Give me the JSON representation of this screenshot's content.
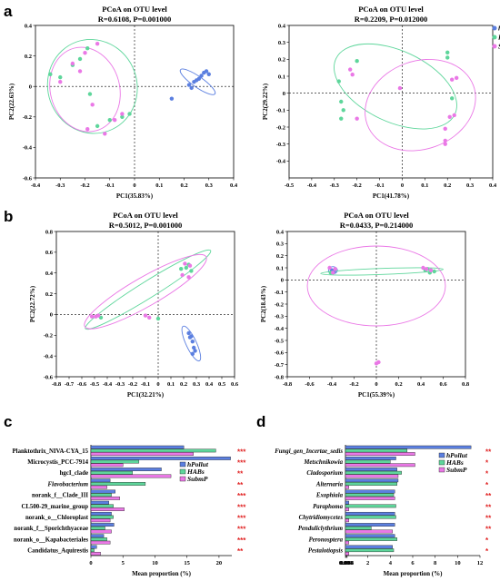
{
  "panel_labels": [
    "a",
    "b",
    "c",
    "d"
  ],
  "colors": {
    "hPollut": "#5b7fe0",
    "HABs": "#5ed69b",
    "SubmP": "#ea78e6"
  },
  "chart_data": [
    {
      "type": "scatter",
      "title": "PCoA on OTU level",
      "subtitle": "R=0.6108, P=0.001000",
      "xlabel": "PC1(35.83%)",
      "ylabel": "PC2(22.63%)",
      "xlim": [
        -0.4,
        0.4
      ],
      "ylim": [
        -0.6,
        0.4
      ],
      "xticks": [
        "-0.4",
        "-0.3",
        "-0.2",
        "-0.1",
        "0",
        "0.1",
        "0.2",
        "0.3",
        "0.4"
      ],
      "yticks": [
        "-0.6",
        "-0.4",
        "-0.2",
        "0",
        "0.2",
        "0.4"
      ],
      "legend": [
        "hPollut",
        "HABs",
        "SubmP"
      ],
      "series": [
        {
          "name": "hPollut",
          "points": [
            [
              0.22,
              0.01
            ],
            [
              0.24,
              0.03
            ],
            [
              0.26,
              0.05
            ],
            [
              0.27,
              0.07
            ],
            [
              0.28,
              0.09
            ],
            [
              0.29,
              0.1
            ],
            [
              0.3,
              0.08
            ],
            [
              0.25,
              0.04
            ],
            [
              0.23,
              -0.01
            ],
            [
              0.15,
              -0.08
            ]
          ]
        },
        {
          "name": "HABs",
          "points": [
            [
              -0.34,
              0.08
            ],
            [
              -0.3,
              0.06
            ],
            [
              -0.25,
              0.14
            ],
            [
              -0.22,
              0.18
            ],
            [
              -0.19,
              0.25
            ],
            [
              -0.18,
              -0.05
            ],
            [
              -0.1,
              -0.22
            ],
            [
              -0.05,
              -0.2
            ],
            [
              -0.15,
              -0.26
            ],
            [
              -0.02,
              -0.18
            ]
          ]
        },
        {
          "name": "SubmP",
          "points": [
            [
              -0.3,
              0.03
            ],
            [
              -0.25,
              0.15
            ],
            [
              -0.2,
              0.22
            ],
            [
              -0.15,
              0.28
            ],
            [
              -0.17,
              -0.12
            ],
            [
              -0.19,
              -0.28
            ],
            [
              -0.12,
              -0.31
            ],
            [
              -0.08,
              -0.22
            ],
            [
              -0.05,
              -0.18
            ],
            [
              -0.22,
              0.1
            ]
          ]
        }
      ],
      "ellipses": [
        {
          "name": "hPollut",
          "cx": 0.255,
          "cy": 0.03,
          "rx": 0.085,
          "ry": 0.035,
          "angle": 35
        },
        {
          "name": "HABs",
          "cx": -0.17,
          "cy": 0.0,
          "rx": 0.18,
          "ry": 0.31,
          "angle": -20
        },
        {
          "name": "SubmP",
          "cx": -0.2,
          "cy": -0.02,
          "rx": 0.14,
          "ry": 0.28,
          "angle": -15
        }
      ]
    },
    {
      "type": "scatter",
      "title": "PCoA on OTU level",
      "subtitle": "R=0.2209, P=0.012000",
      "xlabel": "PC1(41.78%)",
      "ylabel": "PC2(29.22%)",
      "xlim": [
        -0.5,
        0.4
      ],
      "ylim": [
        -0.5,
        0.4
      ],
      "xticks": [
        "-0.5",
        "-0.4",
        "-0.3",
        "-0.2",
        "-0.1",
        "0",
        "0.1",
        "0.2",
        "0.3",
        "0.4"
      ],
      "yticks": [
        "-0.4",
        "-0.3",
        "-0.2",
        "-0.1",
        "0",
        "0.1",
        "0.2",
        "0.3",
        "0.4"
      ],
      "legend": [
        "hPollut",
        "HABs",
        "SubmP"
      ],
      "series": [
        {
          "name": "hPollut",
          "points": []
        },
        {
          "name": "HABs",
          "points": [
            [
              -0.28,
              0.07
            ],
            [
              -0.27,
              -0.05
            ],
            [
              -0.26,
              -0.1
            ],
            [
              -0.27,
              -0.15
            ],
            [
              0.2,
              0.24
            ],
            [
              0.2,
              0.21
            ],
            [
              0.22,
              -0.03
            ],
            [
              -0.2,
              0.19
            ]
          ]
        },
        {
          "name": "SubmP",
          "points": [
            [
              -0.23,
              0.14
            ],
            [
              -0.22,
              0.11
            ],
            [
              -0.2,
              -0.15
            ],
            [
              -0.01,
              0.03
            ],
            [
              0.24,
              0.09
            ],
            [
              0.23,
              -0.13
            ],
            [
              0.21,
              -0.14
            ],
            [
              0.19,
              -0.21
            ],
            [
              0.19,
              -0.28
            ],
            [
              0.19,
              -0.3
            ],
            [
              0.22,
              0.08
            ]
          ]
        }
      ],
      "ellipses": [
        {
          "name": "HABs",
          "cx": -0.03,
          "cy": 0.04,
          "rx": 0.29,
          "ry": 0.21,
          "angle": 25
        },
        {
          "name": "SubmP",
          "cx": 0.08,
          "cy": -0.07,
          "rx": 0.25,
          "ry": 0.26,
          "angle": -20
        }
      ]
    },
    {
      "type": "scatter",
      "title": "PCoA on OTU level",
      "subtitle": "R=0.5012, P=0.001000",
      "xlabel": "PC1(32.21%)",
      "ylabel": "PC2(22.72%)",
      "xlim": [
        -0.8,
        0.6
      ],
      "ylim": [
        -0.6,
        0.8
      ],
      "xticks": [
        "-0.8",
        "-0.7",
        "-0.6",
        "-0.5",
        "-0.4",
        "-0.3",
        "-0.2",
        "-0.1",
        "0",
        "0.1",
        "0.2",
        "0.3",
        "0.4",
        "0.5",
        "0.6"
      ],
      "yticks": [
        "-0.6",
        "-0.4",
        "-0.2",
        "0",
        "0.2",
        "0.4",
        "0.6",
        "0.8"
      ],
      "legend": [],
      "series": [
        {
          "name": "hPollut",
          "points": [
            [
              0.24,
              -0.18
            ],
            [
              0.26,
              -0.21
            ],
            [
              0.27,
              -0.26
            ],
            [
              0.28,
              -0.32
            ],
            [
              0.29,
              -0.35
            ],
            [
              0.27,
              -0.38
            ],
            [
              0.25,
              -0.22
            ]
          ]
        },
        {
          "name": "HABs",
          "points": [
            [
              -0.45,
              -0.03
            ],
            [
              0.22,
              0.45
            ],
            [
              0.24,
              0.48
            ],
            [
              0.26,
              0.42
            ],
            [
              0.18,
              0.44
            ],
            [
              0.0,
              -0.04
            ]
          ]
        },
        {
          "name": "SubmP",
          "points": [
            [
              -0.52,
              -0.02
            ],
            [
              -0.49,
              -0.02
            ],
            [
              -0.47,
              -0.01
            ],
            [
              -0.1,
              -0.01
            ],
            [
              -0.07,
              -0.03
            ],
            [
              0.21,
              0.49
            ],
            [
              0.19,
              0.38
            ],
            [
              0.24,
              0.36
            ],
            [
              0.25,
              0.47
            ]
          ]
        }
      ],
      "ellipses": [
        {
          "name": "hPollut",
          "cx": 0.26,
          "cy": -0.28,
          "rx": 0.15,
          "ry": 0.05,
          "angle": 65
        },
        {
          "name": "HABs",
          "cx": -0.08,
          "cy": 0.24,
          "rx": 0.58,
          "ry": 0.08,
          "angle": -32
        },
        {
          "name": "SubmP",
          "cx": -0.1,
          "cy": 0.22,
          "rx": 0.55,
          "ry": 0.14,
          "angle": -30
        }
      ]
    },
    {
      "type": "scatter",
      "title": "PCoA on OTU level",
      "subtitle": "R=0.0433, P=0.214000",
      "xlabel": "PC1(55.39%)",
      "ylabel": "PC2(18.43%)",
      "xlim": [
        -0.8,
        0.8
      ],
      "ylim": [
        -0.8,
        0.4
      ],
      "xticks": [
        "-0.8",
        "-0.6",
        "-0.4",
        "-0.2",
        "0",
        "0.2",
        "0.4",
        "0.6",
        "0.8"
      ],
      "yticks": [
        "-0.8",
        "-0.7",
        "-0.6",
        "-0.5",
        "-0.4",
        "-0.3",
        "-0.2",
        "-0.1",
        "0",
        "0.1",
        "0.2",
        "0.3",
        "0.4"
      ],
      "legend": [],
      "series": [
        {
          "name": "hPollut",
          "points": [
            [
              -0.4,
              0.08
            ],
            [
              -0.38,
              0.07
            ]
          ]
        },
        {
          "name": "HABs",
          "points": [
            [
              -0.41,
              0.06
            ],
            [
              0.44,
              0.08
            ],
            [
              0.48,
              0.06
            ],
            [
              0.46,
              0.09
            ],
            [
              0.52,
              0.07
            ]
          ]
        },
        {
          "name": "SubmP",
          "points": [
            [
              -0.42,
              0.1
            ],
            [
              -0.39,
              0.06
            ],
            [
              -0.37,
              0.09
            ],
            [
              0.42,
              0.1
            ],
            [
              0.45,
              0.09
            ],
            [
              0.49,
              0.08
            ],
            [
              0.02,
              -0.68
            ],
            [
              0.0,
              -0.69
            ]
          ]
        }
      ],
      "ellipses": [
        {
          "name": "hPollut",
          "cx": -0.39,
          "cy": 0.08,
          "rx": 0.04,
          "ry": 0.03,
          "angle": 0
        },
        {
          "name": "HABs",
          "cx": 0.05,
          "cy": 0.07,
          "rx": 0.55,
          "ry": 0.025,
          "angle": -2
        },
        {
          "name": "SubmP",
          "cx": 0.0,
          "cy": -0.05,
          "rx": 0.62,
          "ry": 0.33,
          "angle": 0
        }
      ]
    },
    {
      "type": "bar",
      "orientation": "horizontal",
      "xlabel": "Mean proportion (%)",
      "xlim": [
        0,
        22
      ],
      "xticks": [
        "0",
        "5",
        "10",
        "15",
        "20"
      ],
      "categories": [
        "Planktothrix_NIVA-CYA_15",
        "Microcystis_PCC-7914",
        "hgcI_clade",
        "Flavobacterium",
        "norank_f__Clade_III",
        "CL500-29_marine_group",
        "norank_o__Chloroplast",
        "norank_f__Sporichthyaceae",
        "norank_o__Kapabacteriales",
        "Candidatus_Aquirestis"
      ],
      "italic": [
        false,
        false,
        false,
        true,
        false,
        false,
        false,
        false,
        false,
        false
      ],
      "series": [
        {
          "name": "hPollut",
          "values": [
            14.5,
            21.8,
            11.0,
            3.0,
            3.8,
            2.8,
            3.2,
            3.6,
            2.0,
            0.9
          ]
        },
        {
          "name": "HABs",
          "values": [
            19.5,
            7.5,
            6.5,
            8.5,
            3.2,
            3.5,
            3.5,
            2.2,
            2.5,
            0.5
          ]
        },
        {
          "name": "SubmP",
          "values": [
            16.0,
            5.0,
            12.5,
            2.5,
            4.5,
            5.2,
            3.0,
            3.2,
            3.0,
            1.5
          ]
        }
      ],
      "significance": [
        "***",
        "***",
        "**",
        "**",
        "***",
        "***",
        "***",
        "***",
        "***",
        "**"
      ],
      "legend": [
        "hPollut",
        "HABs",
        "SubmP"
      ]
    },
    {
      "type": "bar",
      "orientation": "horizontal",
      "xlabel": "Mean proportion (%)",
      "xlim": [
        0,
        12
      ],
      "xticks": [
        "0.000",
        "0.004",
        "0.008",
        "2",
        "4",
        "6",
        "8",
        "10",
        "12"
      ],
      "categories": [
        "Fungi_gen_Incertae_sedis",
        "Metschnikowia",
        "Cladosporium",
        "Alternaria",
        "Exophiala",
        "Paraphoma",
        "Chytridiomycetes",
        "Penduliclythrium",
        "Peronosptera",
        "Pestalotiopsis"
      ],
      "italic": [
        true,
        true,
        true,
        true,
        true,
        true,
        true,
        true,
        true,
        true
      ],
      "series": [
        {
          "name": "hPollut",
          "values": [
            11.2,
            4.5,
            4.6,
            4.7,
            4.4,
            0.3,
            4.4,
            4.4,
            4.4,
            4.2
          ]
        },
        {
          "name": "HABs",
          "values": [
            5.5,
            4.0,
            5.0,
            4.6,
            4.3,
            4.5,
            4.5,
            2.3,
            4.6,
            4.3
          ]
        },
        {
          "name": "SubmP",
          "values": [
            6.2,
            6.2,
            4.7,
            0.3,
            4.4,
            0.3,
            0.3,
            4.2,
            0.3,
            0.3
          ]
        }
      ],
      "significance": [
        "**",
        "*",
        "*",
        "*",
        "**",
        "**",
        "**",
        "**",
        "*",
        "*"
      ],
      "legend": [
        "hPollut",
        "HABs",
        "SubmP"
      ]
    }
  ]
}
